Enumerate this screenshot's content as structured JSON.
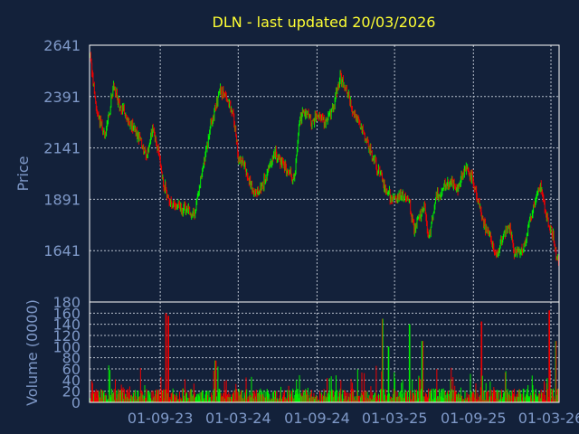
{
  "chart_data": [
    {
      "type": "candlestick",
      "title": "DLN - last updated 20/03/2026",
      "ylabel": "Price",
      "ylim": [
        1391,
        2641
      ],
      "y_ticks": [
        2641,
        2391,
        2141,
        1891,
        1641
      ],
      "x_tick_labels": [
        "01-09-23",
        "01-03-24",
        "01-09-24",
        "01-03-25",
        "01-09-25",
        "01-03-26"
      ],
      "x_tick_dates": [
        "2023-09-01",
        "2024-03-01",
        "2024-09-01",
        "2025-03-01",
        "2025-09-01",
        "2026-03-01"
      ],
      "x_range": [
        "2023-03-20",
        "2026-03-20"
      ],
      "grid": true,
      "colors": {
        "up": "#00ee00",
        "down": "#ee0000",
        "title": "#ffff33",
        "axis_text": "#7f99c8",
        "background": "#13213a"
      },
      "close_path": [
        [
          "2023-03-20",
          2600
        ],
        [
          "2023-04-05",
          2330
        ],
        [
          "2023-04-25",
          2200
        ],
        [
          "2023-05-15",
          2440
        ],
        [
          "2023-06-05",
          2320
        ],
        [
          "2023-06-25",
          2260
        ],
        [
          "2023-07-15",
          2190
        ],
        [
          "2023-07-31",
          2090
        ],
        [
          "2023-08-15",
          2260
        ],
        [
          "2023-09-01",
          2060
        ],
        [
          "2023-09-10",
          1960
        ],
        [
          "2023-09-25",
          1870
        ],
        [
          "2023-10-15",
          1855
        ],
        [
          "2023-11-05",
          1840
        ],
        [
          "2023-11-20",
          1820
        ],
        [
          "2023-12-10",
          2050
        ],
        [
          "2023-12-28",
          2250
        ],
        [
          "2024-01-10",
          2360
        ],
        [
          "2024-01-20",
          2420
        ],
        [
          "2024-02-05",
          2380
        ],
        [
          "2024-02-20",
          2280
        ],
        [
          "2024-03-01",
          2100
        ],
        [
          "2024-03-15",
          2050
        ],
        [
          "2024-04-10",
          1910
        ],
        [
          "2024-05-01",
          1980
        ],
        [
          "2024-05-25",
          2120
        ],
        [
          "2024-06-15",
          2060
        ],
        [
          "2024-07-10",
          1980
        ],
        [
          "2024-07-20",
          2250
        ],
        [
          "2024-08-01",
          2320
        ],
        [
          "2024-08-20",
          2270
        ],
        [
          "2024-09-01",
          2300
        ],
        [
          "2024-09-20",
          2260
        ],
        [
          "2024-10-10",
          2350
        ],
        [
          "2024-10-25",
          2480
        ],
        [
          "2024-11-10",
          2420
        ],
        [
          "2024-11-25",
          2300
        ],
        [
          "2024-12-10",
          2250
        ],
        [
          "2025-01-05",
          2120
        ],
        [
          "2025-01-25",
          2020
        ],
        [
          "2025-02-10",
          1930
        ],
        [
          "2025-02-28",
          1880
        ],
        [
          "2025-03-20",
          1920
        ],
        [
          "2025-04-05",
          1870
        ],
        [
          "2025-04-15",
          1740
        ],
        [
          "2025-04-25",
          1800
        ],
        [
          "2025-05-10",
          1850
        ],
        [
          "2025-05-20",
          1700
        ],
        [
          "2025-06-05",
          1900
        ],
        [
          "2025-06-20",
          1940
        ],
        [
          "2025-07-10",
          1980
        ],
        [
          "2025-07-25",
          1940
        ],
        [
          "2025-08-15",
          2050
        ],
        [
          "2025-08-30",
          1980
        ],
        [
          "2025-09-15",
          1860
        ],
        [
          "2025-09-25",
          1770
        ],
        [
          "2025-10-10",
          1720
        ],
        [
          "2025-10-25",
          1600
        ],
        [
          "2025-11-10",
          1720
        ],
        [
          "2025-11-25",
          1760
        ],
        [
          "2025-12-05",
          1620
        ],
        [
          "2025-12-25",
          1650
        ],
        [
          "2026-01-10",
          1780
        ],
        [
          "2026-01-25",
          1900
        ],
        [
          "2026-02-05",
          1950
        ],
        [
          "2026-02-20",
          1790
        ],
        [
          "2026-03-05",
          1720
        ],
        [
          "2026-03-20",
          1560
        ]
      ]
    },
    {
      "type": "bar",
      "ylabel": "Volume (0000)",
      "ylim": [
        0,
        180
      ],
      "y_ticks": [
        0,
        20,
        40,
        60,
        80,
        100,
        120,
        140,
        160,
        180
      ],
      "grid": true,
      "spikes": [
        [
          "2023-09-15",
          160
        ],
        [
          "2023-09-20",
          155
        ],
        [
          "2024-01-08",
          75
        ],
        [
          "2025-02-01",
          150
        ],
        [
          "2025-02-15",
          100
        ],
        [
          "2025-04-05",
          140
        ],
        [
          "2025-05-05",
          110
        ],
        [
          "2025-09-20",
          145
        ],
        [
          "2026-02-25",
          165
        ],
        [
          "2026-03-12",
          110
        ]
      ]
    }
  ]
}
